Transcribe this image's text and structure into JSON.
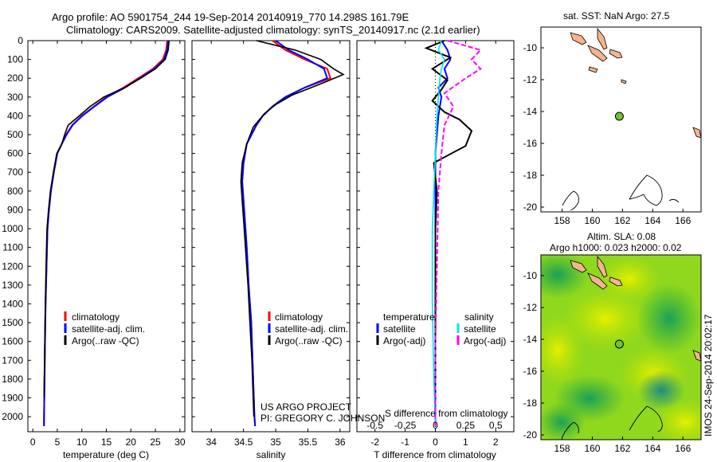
{
  "header": {
    "line1": "Argo profile: AO 5901754_244 19-Sep-2014 20140919_770 14.298S 161.79E",
    "line2": "Climatology: CARS2009. Satellite-adjusted climatology: synTS_20140917.nc (2.1d earlier)"
  },
  "credit": {
    "line1": "US ARGO PROJECT",
    "line2": "PI: GREGORY C. JOHNSON"
  },
  "side_stamp": "IMOS 24-Sep-2014 20:02:17",
  "colors": {
    "climatology": "#ff0000",
    "satellite": "#0000ff",
    "argo": "#000000",
    "sal_satellite": "#00e5ee",
    "sal_argo": "#ff00ff",
    "land": "#f4b48c",
    "float_marker": "#6ec632"
  },
  "chart_data": [
    {
      "type": "line",
      "panel": "temperature",
      "xlabel": "temperature (deg C)",
      "ylabel": "",
      "xlim": [
        -1,
        31
      ],
      "ylim": [
        2080,
        0
      ],
      "xticks": [
        0,
        5,
        10,
        15,
        20,
        25,
        30
      ],
      "yticks": [
        0,
        100,
        200,
        300,
        400,
        500,
        600,
        700,
        800,
        900,
        1000,
        1100,
        1200,
        1300,
        1400,
        1500,
        1600,
        1700,
        1800,
        1900,
        2000
      ],
      "legend": [
        "climatology",
        "satellite-adj. clim.",
        "Argo(..raw -QC)"
      ],
      "series": [
        {
          "name": "climatology",
          "color": "#ff0000",
          "x": [
            27.4,
            27.2,
            26.5,
            24.5,
            21.5,
            18.5,
            15.0,
            12.5,
            10.0,
            8.0,
            6.8,
            5.9,
            5.0,
            4.3,
            3.7,
            3.3,
            3.0,
            2.8,
            2.6,
            2.5,
            2.4,
            2.35,
            2.3,
            2.28
          ],
          "y": [
            0,
            50,
            100,
            150,
            200,
            250,
            300,
            350,
            400,
            450,
            500,
            550,
            600,
            700,
            800,
            900,
            1000,
            1200,
            1400,
            1600,
            1800,
            1900,
            2000,
            2050
          ]
        },
        {
          "name": "satellite-adj. clim.",
          "color": "#0000ff",
          "x": [
            27.6,
            27.4,
            26.8,
            24.8,
            21.8,
            18.8,
            15.2,
            12.6,
            10.1,
            8.1,
            6.9,
            5.9,
            5.0,
            4.3,
            3.7,
            3.3,
            3.0,
            2.8,
            2.6,
            2.5,
            2.4,
            2.35,
            2.3,
            2.28
          ],
          "y": [
            0,
            50,
            100,
            150,
            200,
            250,
            300,
            350,
            400,
            450,
            500,
            550,
            600,
            700,
            800,
            900,
            1000,
            1200,
            1400,
            1600,
            1800,
            1900,
            2000,
            2050
          ]
        },
        {
          "name": "Argo(..raw -QC)",
          "color": "#000000",
          "x": [
            27.8,
            27.6,
            27.0,
            25.0,
            22.0,
            18.7,
            14.5,
            11.7,
            9.5,
            7.2,
            6.5,
            5.9,
            4.9,
            4.2,
            3.6,
            3.2,
            2.9,
            2.7,
            2.55,
            2.45,
            2.35,
            2.3
          ],
          "y": [
            0,
            50,
            100,
            150,
            200,
            250,
            300,
            350,
            400,
            450,
            500,
            550,
            600,
            700,
            800,
            900,
            1000,
            1200,
            1400,
            1600,
            1800,
            1900
          ]
        }
      ]
    },
    {
      "type": "line",
      "panel": "salinity",
      "xlabel": "salinity",
      "xlim": [
        33.7,
        36.15
      ],
      "ylim": [
        2080,
        0
      ],
      "xticks": [
        34,
        34.5,
        35,
        35.5,
        36
      ],
      "legend": [
        "climatology",
        "satellite-adj. clim.",
        "Argo(..raw -QC)"
      ],
      "series": [
        {
          "name": "climatology",
          "color": "#ff0000",
          "x": [
            34.95,
            35.15,
            35.45,
            35.8,
            35.85,
            35.45,
            35.15,
            34.95,
            34.8,
            34.7,
            34.55,
            34.5,
            34.48,
            34.5,
            34.52,
            34.55,
            34.58,
            34.62,
            34.64,
            34.66,
            34.67,
            34.68
          ],
          "y": [
            0,
            50,
            100,
            150,
            200,
            250,
            300,
            350,
            400,
            450,
            550,
            650,
            750,
            850,
            950,
            1100,
            1300,
            1500,
            1700,
            1900,
            2000,
            2050
          ]
        },
        {
          "name": "satellite-adj. clim.",
          "color": "#0000ff",
          "x": [
            35.0,
            35.2,
            35.5,
            35.75,
            35.8,
            35.45,
            35.15,
            34.95,
            34.8,
            34.7,
            34.55,
            34.5,
            34.48,
            34.5,
            34.52,
            34.55,
            34.58,
            34.62,
            34.64,
            34.66,
            34.67,
            34.68
          ],
          "y": [
            0,
            50,
            100,
            150,
            200,
            250,
            300,
            350,
            400,
            450,
            550,
            650,
            750,
            850,
            950,
            1100,
            1300,
            1500,
            1700,
            1900,
            2000,
            2050
          ]
        },
        {
          "name": "Argo(..raw -QC)",
          "color": "#000000",
          "x": [
            34.7,
            35.3,
            35.7,
            35.9,
            36.05,
            35.7,
            35.25,
            35.0,
            34.82,
            34.65,
            34.55,
            34.48,
            34.46,
            34.48,
            34.5,
            34.53,
            34.57,
            34.6,
            34.63,
            34.65,
            34.66
          ],
          "y": [
            0,
            50,
            100,
            150,
            180,
            230,
            290,
            340,
            390,
            460,
            550,
            650,
            750,
            850,
            950,
            1100,
            1300,
            1500,
            1700,
            1900,
            2000
          ]
        }
      ]
    },
    {
      "type": "line",
      "panel": "differences",
      "xlabel": "T difference from climatology",
      "xlabel_top": "S difference from climatology",
      "xlim": [
        -2.6,
        2.6
      ],
      "ylim": [
        2080,
        0
      ],
      "xticks": [
        -2,
        -1,
        0,
        1,
        2
      ],
      "xticks_s_labels": [
        "-0.5",
        "-0.25",
        "0",
        "0.25",
        "0.5"
      ],
      "legend_groups": [
        "temperature",
        "salinity"
      ],
      "legend": [
        "satellite",
        "Argo(-adj)",
        "satellite",
        "Argo(-adj)"
      ],
      "series": [
        {
          "name": "satellite",
          "quantity": "temperature",
          "color": "#0000ff",
          "x": [
            0.2,
            0.4,
            0.5,
            0.3,
            0.4,
            0.1,
            0.2,
            0.1,
            0.05,
            0.0,
            0.0,
            0.0,
            0.0,
            0.0,
            0.0
          ],
          "y": [
            0,
            50,
            100,
            150,
            200,
            250,
            300,
            400,
            500,
            600,
            800,
            1000,
            1400,
            1800,
            2050
          ]
        },
        {
          "name": "Argo(-adj)",
          "quantity": "temperature",
          "color": "#000000",
          "x": [
            0.3,
            -0.3,
            0.5,
            -0.1,
            0.4,
            0.2,
            -0.1,
            0.3,
            0.8,
            1.2,
            1.0,
            -0.05,
            0.05,
            0.0,
            0.0,
            0.0
          ],
          "y": [
            0,
            40,
            90,
            150,
            210,
            260,
            320,
            380,
            420,
            480,
            560,
            650,
            800,
            1000,
            1400,
            1900
          ]
        },
        {
          "name": "satellite",
          "quantity": "salinity",
          "color": "#00e5ee",
          "x": [
            0.2,
            0.1,
            0.3,
            0.2,
            0.15,
            0.1,
            0.05,
            0.0,
            -0.05,
            -0.1,
            -0.1,
            -0.05,
            0.0
          ],
          "y": [
            0,
            50,
            100,
            150,
            200,
            300,
            400,
            600,
            800,
            1000,
            1400,
            1800,
            2050
          ]
        },
        {
          "name": "Argo(-adj)",
          "quantity": "salinity",
          "color": "#ff00ff",
          "x": [
            0.4,
            1.5,
            1.2,
            1.5,
            1.0,
            0.3,
            0.6,
            0.3,
            0.2,
            0.1,
            0.05,
            0.0,
            0.0
          ],
          "y": [
            0,
            50,
            100,
            150,
            200,
            280,
            350,
            450,
            600,
            800,
            1200,
            1600,
            2050
          ]
        }
      ]
    },
    {
      "type": "scatter",
      "panel": "map-sst",
      "title": "sat. SST: NaN Argo: 27.5",
      "xlim": [
        156.6,
        167.2
      ],
      "ylim": [
        -20.3,
        -8.7
      ],
      "xticks": [
        158,
        160,
        162,
        164,
        166
      ],
      "yticks": [
        -10,
        -12,
        -14,
        -16,
        -18,
        -20
      ],
      "points": [
        {
          "lon": 161.79,
          "lat": -14.298
        }
      ]
    },
    {
      "type": "heatmap",
      "panel": "map-sla",
      "title": "Altim. SLA: 0.08",
      "subtitle": "Argo h1000: 0.023 h2000: 0.02",
      "xlim": [
        156.6,
        167.2
      ],
      "ylim": [
        -20.3,
        -8.7
      ],
      "xticks": [
        158,
        160,
        162,
        164,
        166
      ],
      "yticks": [
        -10,
        -12,
        -14,
        -16,
        -18,
        -20
      ],
      "points": [
        {
          "lon": 161.79,
          "lat": -14.298
        }
      ]
    }
  ]
}
